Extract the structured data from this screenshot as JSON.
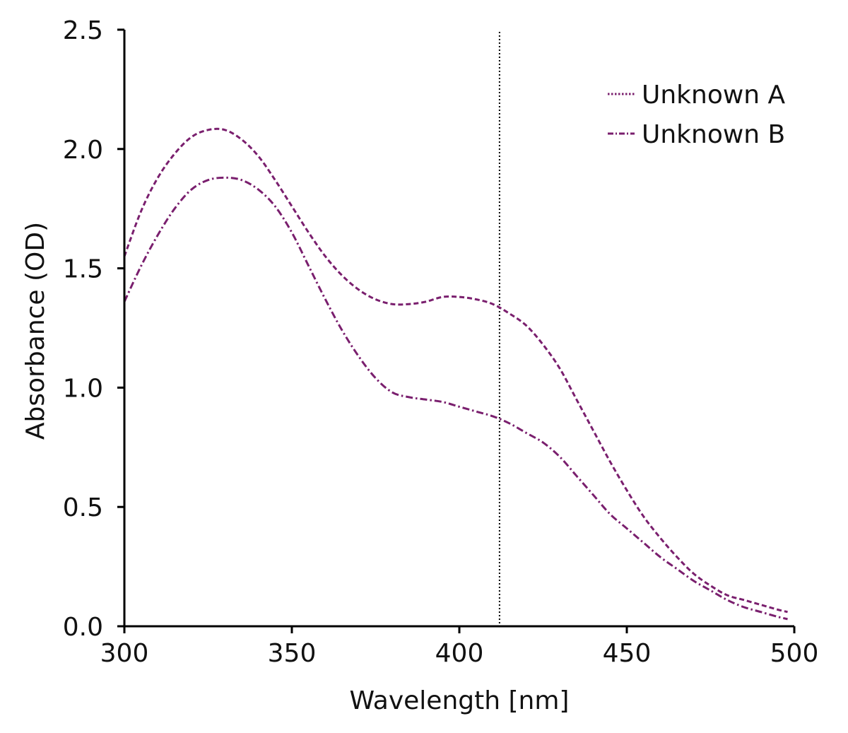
{
  "chart_data": {
    "type": "line",
    "title": "",
    "xlabel": "Wavelength [nm]",
    "ylabel": "Absorbance (OD)",
    "xlim": [
      300,
      500
    ],
    "ylim": [
      0.0,
      2.5
    ],
    "xticks": [
      300,
      350,
      400,
      450,
      500
    ],
    "xtick_labels": [
      "300",
      "350",
      "400",
      "450",
      "500"
    ],
    "yticks": [
      0.0,
      0.5,
      1.0,
      1.5,
      2.0,
      2.5
    ],
    "ytick_labels": [
      "0.0",
      "0.5",
      "1.0",
      "1.5",
      "2.0",
      "2.5"
    ],
    "grid": false,
    "legend_position": "top-right",
    "reference_line": {
      "x": 412,
      "style": "dotted",
      "color": "#000000"
    },
    "series": [
      {
        "name": "Unknown A",
        "color": "#7a1f6e",
        "style": "dashed",
        "x": [
          300,
          305,
          310,
          315,
          320,
          325,
          330,
          335,
          340,
          345,
          350,
          355,
          360,
          365,
          370,
          375,
          380,
          385,
          390,
          395,
          400,
          405,
          410,
          415,
          420,
          425,
          430,
          435,
          440,
          445,
          450,
          455,
          460,
          465,
          470,
          475,
          480,
          485,
          490,
          495,
          498
        ],
        "y": [
          1.55,
          1.74,
          1.88,
          1.98,
          2.05,
          2.08,
          2.08,
          2.04,
          1.97,
          1.87,
          1.76,
          1.65,
          1.55,
          1.47,
          1.41,
          1.37,
          1.35,
          1.35,
          1.36,
          1.38,
          1.38,
          1.37,
          1.35,
          1.31,
          1.26,
          1.18,
          1.08,
          0.95,
          0.82,
          0.69,
          0.57,
          0.46,
          0.37,
          0.29,
          0.22,
          0.17,
          0.13,
          0.11,
          0.09,
          0.07,
          0.06
        ]
      },
      {
        "name": "Unknown B",
        "color": "#7a1f6e",
        "style": "dashdot",
        "x": [
          300,
          305,
          310,
          315,
          320,
          325,
          330,
          335,
          340,
          345,
          350,
          355,
          360,
          365,
          370,
          375,
          380,
          385,
          390,
          395,
          400,
          405,
          410,
          415,
          420,
          425,
          430,
          435,
          440,
          445,
          450,
          455,
          460,
          465,
          470,
          475,
          480,
          485,
          490,
          495,
          498
        ],
        "y": [
          1.36,
          1.51,
          1.64,
          1.75,
          1.83,
          1.87,
          1.88,
          1.87,
          1.83,
          1.76,
          1.65,
          1.51,
          1.37,
          1.24,
          1.13,
          1.04,
          0.98,
          0.96,
          0.95,
          0.94,
          0.92,
          0.9,
          0.88,
          0.85,
          0.81,
          0.77,
          0.71,
          0.63,
          0.55,
          0.47,
          0.41,
          0.35,
          0.29,
          0.24,
          0.19,
          0.15,
          0.11,
          0.08,
          0.06,
          0.04,
          0.03
        ]
      }
    ]
  }
}
